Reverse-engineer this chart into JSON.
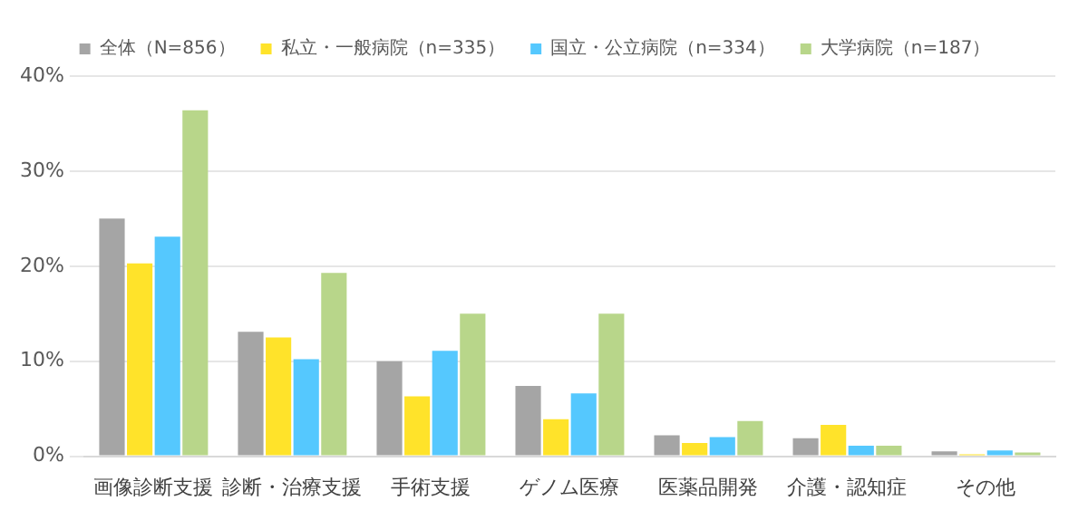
{
  "chart_data": {
    "type": "bar",
    "categories": [
      "画像診断支援",
      "診断・治療支援",
      "手術支援",
      "ゲノム医療",
      "医薬品開発",
      "介護・認知症",
      "その他"
    ],
    "series": [
      {
        "name": "全体（N=856）",
        "color": "#a5a5a5",
        "values": [
          25.0,
          13.1,
          10.0,
          7.4,
          2.2,
          1.9,
          0.5
        ]
      },
      {
        "name": "私立・一般病院（n=335）",
        "color": "#ffe32a",
        "values": [
          20.3,
          12.5,
          6.3,
          3.9,
          1.4,
          3.3,
          0.2
        ]
      },
      {
        "name": "国立・公立病院（n=334）",
        "color": "#55c8fe",
        "values": [
          23.1,
          10.2,
          11.1,
          6.6,
          2.0,
          1.1,
          0.6
        ]
      },
      {
        "name": "大学病院（n=187）",
        "color": "#b8d68a",
        "values": [
          36.4,
          19.3,
          15.0,
          15.0,
          3.7,
          1.1,
          0.4
        ]
      }
    ],
    "ylim": [
      0,
      40
    ],
    "yticks": [
      {
        "value": 0,
        "label": "0%"
      },
      {
        "value": 10,
        "label": "10%"
      },
      {
        "value": 20,
        "label": "20%"
      },
      {
        "value": 30,
        "label": "30%"
      },
      {
        "value": 40,
        "label": "40%"
      }
    ],
    "grid": "y",
    "legend": "top",
    "marker": "square"
  }
}
